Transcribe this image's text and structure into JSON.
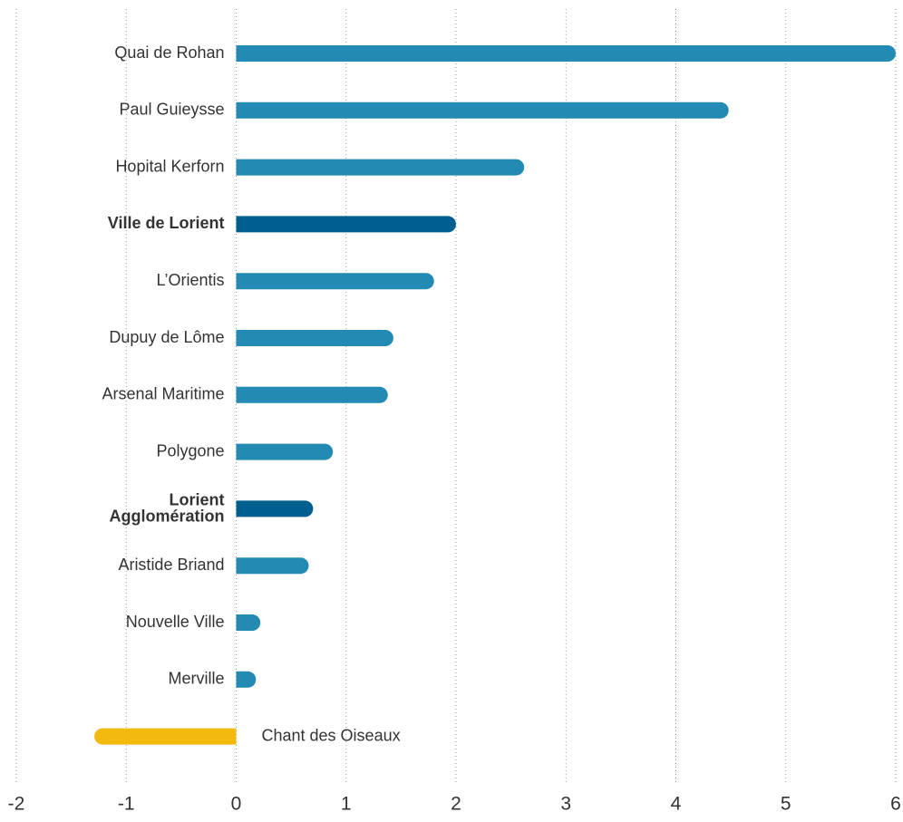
{
  "chart_data": {
    "type": "barh",
    "categories": [
      "Quai de Rohan",
      "Paul Guieysse",
      "Hopital Kerforn",
      "Ville de Lorient",
      "L’Orientis",
      "Dupuy de Lôme",
      "Arsenal Maritime",
      "Polygone",
      "Lorient Agglomération",
      "Aristide Briand",
      "Nouvelle Ville",
      "Merville",
      "Chant des Oiseaux"
    ],
    "values": [
      6.0,
      4.48,
      2.62,
      2.0,
      1.8,
      1.43,
      1.38,
      0.88,
      0.7,
      0.66,
      0.22,
      0.18,
      -1.29
    ],
    "colors": [
      "#238ab4",
      "#238ab4",
      "#238ab4",
      "#005f8e",
      "#238ab4",
      "#238ab4",
      "#238ab4",
      "#238ab4",
      "#005f8e",
      "#238ab4",
      "#238ab4",
      "#238ab4",
      "#f2b90f"
    ],
    "highlight_color": "#005f8e",
    "xlim": [
      -2,
      6
    ],
    "xticks": [
      -2,
      -1,
      0,
      1,
      2,
      3,
      4,
      5,
      6
    ],
    "grid": true
  }
}
